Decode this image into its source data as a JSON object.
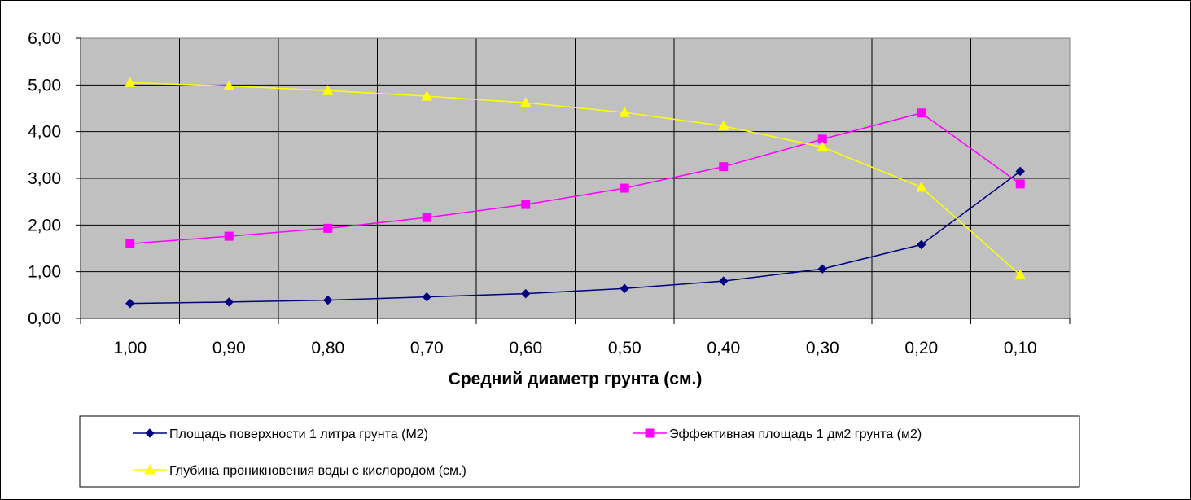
{
  "chart_data": {
    "type": "line",
    "title": "",
    "xlabel": "Средний диаметр грунта (см.)",
    "ylabel": "",
    "categories": [
      "1,00",
      "0,90",
      "0,80",
      "0,70",
      "0,60",
      "0,50",
      "0,40",
      "0,30",
      "0,20",
      "0,10"
    ],
    "y_ticks": [
      "0,00",
      "1,00",
      "2,00",
      "3,00",
      "4,00",
      "5,00",
      "6,00"
    ],
    "ylim": [
      0,
      6
    ],
    "grid": true,
    "plot_background": "#c0c0c0",
    "legend_position": "bottom",
    "series": [
      {
        "name": "Площадь поверхности 1 литра грунта (М2)",
        "color": "#000080",
        "marker": "diamond",
        "values": [
          0.32,
          0.35,
          0.39,
          0.46,
          0.53,
          0.64,
          0.8,
          1.06,
          1.58,
          3.15
        ]
      },
      {
        "name": "Эффективная площадь 1 дм2 грунта (м2)",
        "color": "#ff00ff",
        "marker": "square",
        "values": [
          1.6,
          1.76,
          1.93,
          2.16,
          2.44,
          2.79,
          3.25,
          3.84,
          4.4,
          2.88
        ]
      },
      {
        "name": "Глубина проникновения воды с кислородом (см.)",
        "color": "#ffff00",
        "marker": "triangle",
        "values": [
          5.05,
          4.98,
          4.88,
          4.76,
          4.62,
          4.41,
          4.12,
          3.67,
          2.81,
          0.93
        ]
      }
    ]
  }
}
